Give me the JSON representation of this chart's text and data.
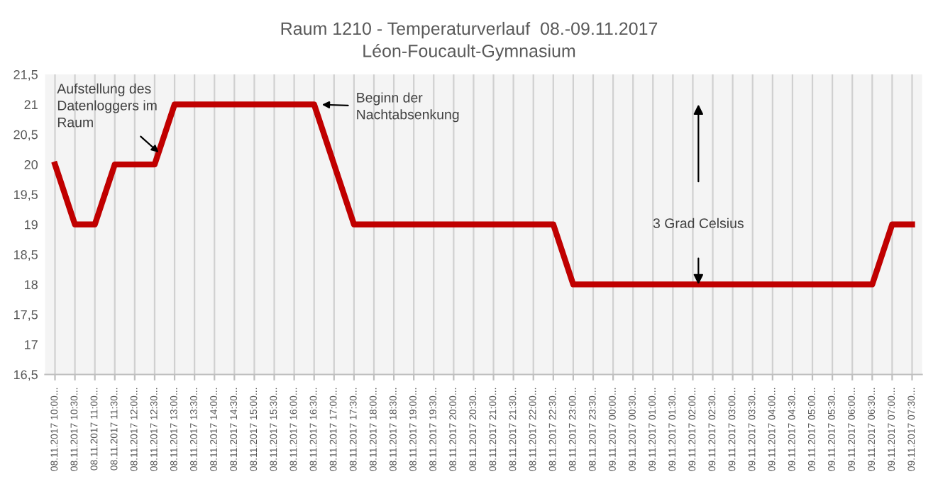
{
  "chart_data": {
    "type": "line",
    "title": "Raum 1210 - Temperaturverlauf  08.-09.11.2017",
    "subtitle": "Léon-Foucault-Gymnasium",
    "categories": [
      "08.11.2017 10:00...",
      "08.11.2017 10:30...",
      "08.11.2017 11:00...",
      "08.11.2017 11:30...",
      "08.11.2017 12:00...",
      "08.11.2017 12:30...",
      "08.11.2017 13:00...",
      "08.11.2017 13:30...",
      "08.11.2017 14:00...",
      "08.11.2017 14:30...",
      "08.11.2017 15:00...",
      "08.11.2017 15:30...",
      "08.11.2017 16:00...",
      "08.11.2017 16:30...",
      "08.11.2017 17:00...",
      "08.11.2017 17:30...",
      "08.11.2017 18:00...",
      "08.11.2017 18:30...",
      "08.11.2017 19:00...",
      "08.11.2017 19:30...",
      "08.11.2017 20:00...",
      "08.11.2017 20:30...",
      "08.11.2017 21:00...",
      "08.11.2017 21:30...",
      "08.11.2017 22:00...",
      "08.11.2017 22:30...",
      "08.11.2017 23:00...",
      "08.11.2017 23:30...",
      "09.11.2017 00:00...",
      "09.11.2017 00:30...",
      "09.11.2017 01:00...",
      "09.11.2017 01:30...",
      "09.11.2017 02:00...",
      "09.11.2017 02:30...",
      "09.11.2017 03:00...",
      "09.11.2017 03:30...",
      "09.11.2017 04:00...",
      "09.11.2017 04:30...",
      "09.11.2017 05:00...",
      "09.11.2017 05:30...",
      "09.11.2017 06:00...",
      "09.11.2017 06:30...",
      "09.11.2017 07:00...",
      "09.11.2017 07:30..."
    ],
    "series": [
      {
        "color": "#c00000",
        "values": [
          20,
          19,
          19,
          20,
          20,
          20,
          21,
          21,
          21,
          21,
          21,
          21,
          21,
          21,
          20,
          19,
          19,
          19,
          19,
          19,
          19,
          19,
          19,
          19,
          19,
          19,
          18,
          18,
          18,
          18,
          18,
          18,
          18,
          18,
          18,
          18,
          18,
          18,
          18,
          18,
          18,
          18,
          19,
          19
        ]
      }
    ],
    "ylim": [
      16.5,
      21.5
    ],
    "yticks": [
      {
        "value": 16.5,
        "label": "16,5"
      },
      17,
      {
        "value": 17.5,
        "label": "17,5"
      },
      18,
      {
        "value": 18.5,
        "label": "18,5"
      },
      19,
      {
        "value": 19.5,
        "label": "19,5"
      },
      20,
      {
        "value": 20.5,
        "label": "20,5"
      },
      21,
      {
        "value": 21.5,
        "label": "21,5"
      }
    ],
    "grid": "x",
    "marker": "none",
    "line_style": "solid",
    "legend": false,
    "annotations": [
      {
        "text": "Aufstellung des\nDatenloggers im\nRaum",
        "x": "08.11.2017 12:30...",
        "y": 20.2
      },
      {
        "text": "Beginn der\nNachtabsenkung",
        "x": "08.11.2017 16:30...",
        "y": 21
      },
      "3 Grad Celsius"
    ]
  }
}
